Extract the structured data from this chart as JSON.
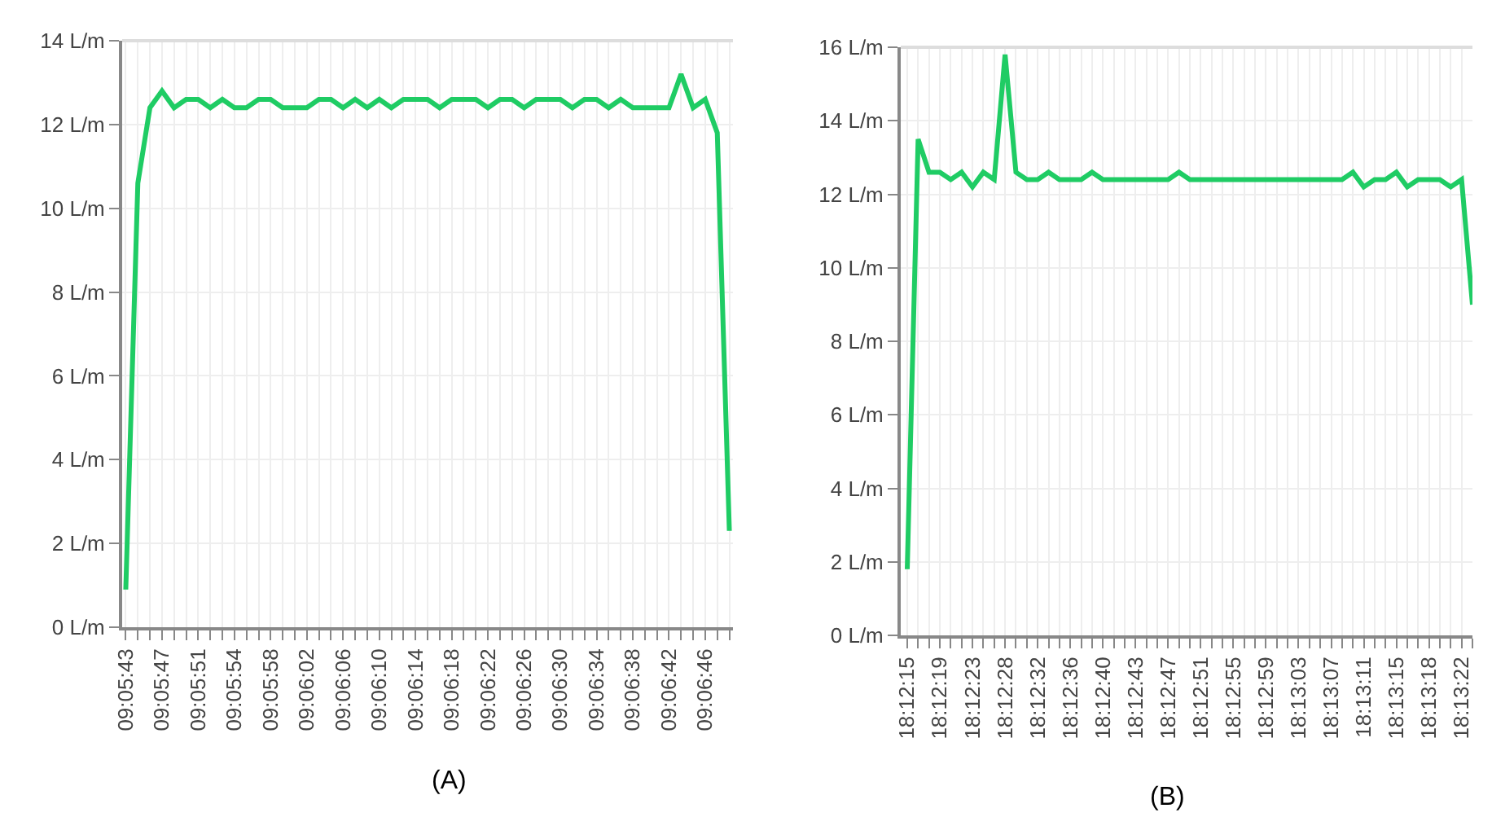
{
  "chart_data": [
    {
      "type": "line",
      "annotations": [
        "(A)"
      ],
      "grid": true,
      "ylim": [
        0,
        14
      ],
      "yticks": [
        {
          "value": 0,
          "label": "0 L/m"
        },
        {
          "value": 2,
          "label": "2 L/m"
        },
        {
          "value": 4,
          "label": "4 L/m"
        },
        {
          "value": 6,
          "label": "6 L/m"
        },
        {
          "value": 8,
          "label": "8 L/m"
        },
        {
          "value": 10,
          "label": "10 L/m"
        },
        {
          "value": 12,
          "label": "12 L/m"
        },
        {
          "value": 14,
          "label": "14 L/m"
        }
      ],
      "categories": [
        "09:05:43",
        null,
        null,
        "09:05:47",
        null,
        null,
        "09:05:51",
        null,
        null,
        "09:05:54",
        null,
        null,
        "09:05:58",
        null,
        null,
        "09:06:02",
        null,
        null,
        "09:06:06",
        null,
        null,
        "09:06:10",
        null,
        null,
        "09:06:14",
        null,
        null,
        "09:06:18",
        null,
        null,
        "09:06:22",
        null,
        null,
        "09:06:26",
        null,
        null,
        "09:06:30",
        null,
        null,
        "09:06:34",
        null,
        null,
        "09:06:38",
        null,
        null,
        "09:06:42",
        null,
        null,
        "09:06:46",
        null,
        null
      ],
      "series": [
        {
          "color": "#1fcc64",
          "values": [
            0.9,
            10.6,
            12.4,
            12.8,
            12.4,
            12.6,
            12.6,
            12.4,
            12.6,
            12.4,
            12.4,
            12.6,
            12.6,
            12.4,
            12.4,
            12.4,
            12.6,
            12.6,
            12.4,
            12.6,
            12.4,
            12.6,
            12.4,
            12.6,
            12.6,
            12.6,
            12.4,
            12.6,
            12.6,
            12.6,
            12.4,
            12.6,
            12.6,
            12.4,
            12.6,
            12.6,
            12.6,
            12.4,
            12.6,
            12.6,
            12.4,
            12.6,
            12.4,
            12.4,
            12.4,
            12.4,
            13.2,
            12.4,
            12.6,
            11.8,
            2.3
          ]
        }
      ]
    },
    {
      "type": "line",
      "annotations": [
        "(B)"
      ],
      "grid": true,
      "ylim": [
        0,
        16
      ],
      "yticks": [
        {
          "value": 0,
          "label": "0 L/m"
        },
        {
          "value": 2,
          "label": "2 L/m"
        },
        {
          "value": 4,
          "label": "4 L/m"
        },
        {
          "value": 6,
          "label": "6 L/m"
        },
        {
          "value": 8,
          "label": "8 L/m"
        },
        {
          "value": 10,
          "label": "10 L/m"
        },
        {
          "value": 12,
          "label": "12 L/m"
        },
        {
          "value": 14,
          "label": "14 L/m"
        },
        {
          "value": 16,
          "label": "16 L/m"
        }
      ],
      "categories": [
        "18:12:15",
        null,
        null,
        "18:12:19",
        null,
        null,
        "18:12:23",
        null,
        null,
        "18:12:28",
        null,
        null,
        "18:12:32",
        null,
        null,
        "18:12:36",
        null,
        null,
        "18:12:40",
        null,
        null,
        "18:12:43",
        null,
        null,
        "18:12:47",
        null,
        null,
        "18:12:51",
        null,
        null,
        "18:12:55",
        null,
        null,
        "18:12:59",
        null,
        null,
        "18:13:03",
        null,
        null,
        "18:13:07",
        null,
        null,
        "18:13:11",
        null,
        null,
        "18:13:15",
        null,
        null,
        "18:13:18",
        null,
        null,
        "18:13:22",
        null
      ],
      "series": [
        {
          "color": "#1fcc64",
          "values": [
            1.8,
            13.5,
            12.6,
            12.6,
            12.4,
            12.6,
            12.2,
            12.6,
            12.4,
            15.8,
            12.6,
            12.4,
            12.4,
            12.6,
            12.4,
            12.4,
            12.4,
            12.6,
            12.4,
            12.4,
            12.4,
            12.4,
            12.4,
            12.4,
            12.4,
            12.6,
            12.4,
            12.4,
            12.4,
            12.4,
            12.4,
            12.4,
            12.4,
            12.4,
            12.4,
            12.4,
            12.4,
            12.4,
            12.4,
            12.4,
            12.4,
            12.6,
            12.2,
            12.4,
            12.4,
            12.6,
            12.2,
            12.4,
            12.4,
            12.4,
            12.2,
            12.4,
            9.0
          ]
        }
      ]
    }
  ]
}
